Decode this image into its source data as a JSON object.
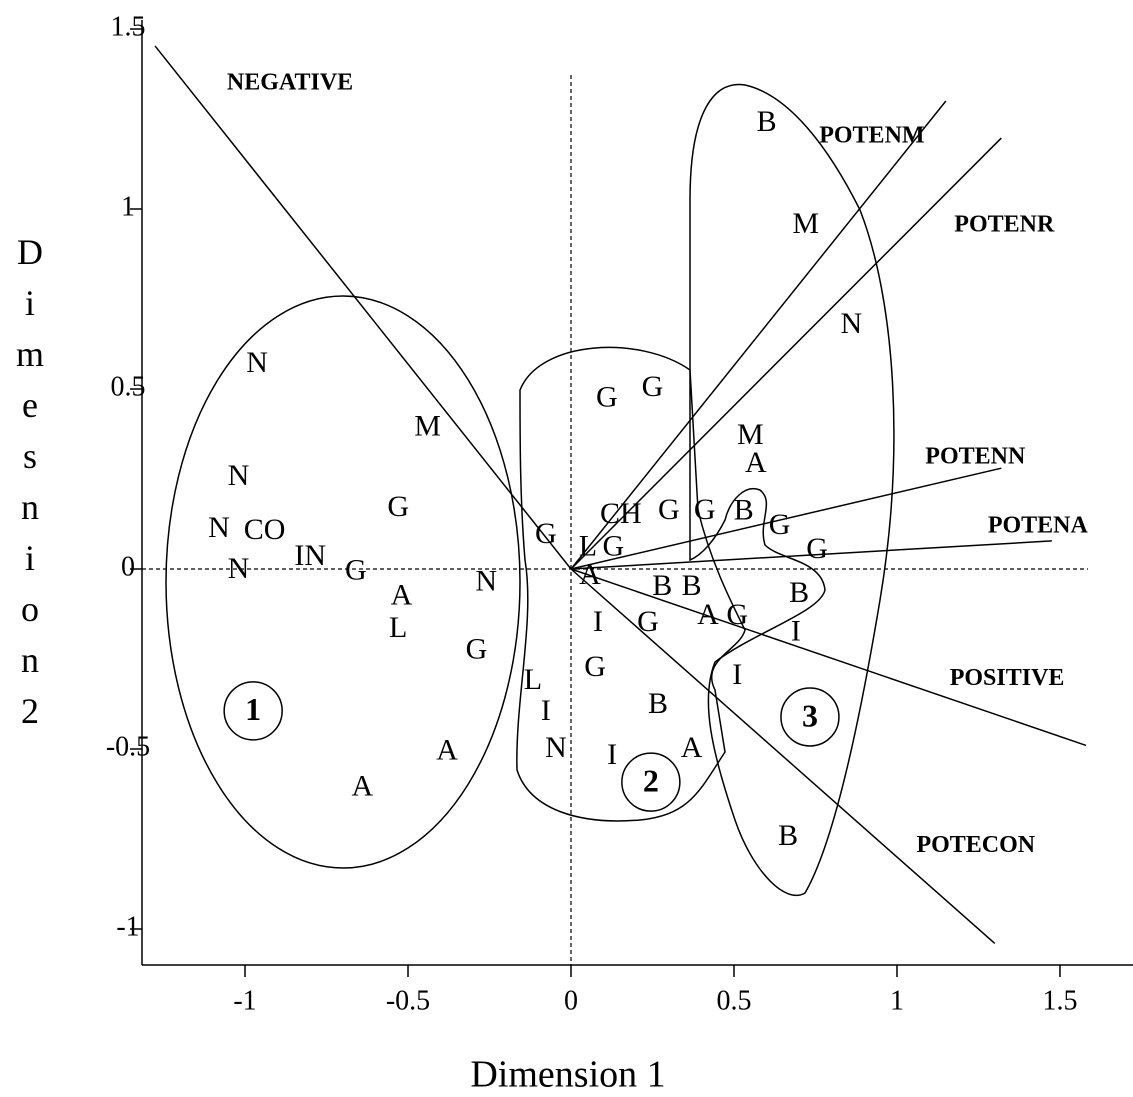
{
  "chart_data": {
    "type": "scatter",
    "xlabel": "Dimension 1",
    "ylabel": "Dimesnion2",
    "xlim": [
      -1.316,
      1.724
    ],
    "ylim": [
      -1.1,
      1.525
    ],
    "xticks": [
      -1,
      -0.5,
      0,
      0.5,
      1,
      1.5
    ],
    "yticks": [
      -1,
      -0.5,
      0,
      0.5,
      1,
      1.5
    ],
    "zero_lines": true,
    "labels": [
      "N",
      "N",
      "N",
      "CO",
      "N",
      "IN",
      "G",
      "G",
      "M",
      "A",
      "L",
      "N",
      "G",
      "A",
      "A",
      "G",
      "G",
      "G",
      "L",
      "G",
      "CH",
      "G",
      "G",
      "A",
      "B",
      "B",
      "I",
      "G",
      "A",
      "G",
      "G",
      "L",
      "I",
      "N",
      "I",
      "B",
      "A",
      "B",
      "M",
      "N",
      "M",
      "A",
      "B",
      "G",
      "G",
      "B",
      "I",
      "I",
      "B"
    ],
    "x": [
      -0.963,
      -1.02,
      -1.08,
      -0.94,
      -1.02,
      -0.8,
      -0.66,
      -0.53,
      -0.44,
      -0.52,
      -0.53,
      -0.26,
      -0.29,
      -0.38,
      -0.64,
      0.11,
      0.25,
      -0.077,
      0.052,
      0.13,
      0.153,
      0.3,
      0.41,
      0.058,
      0.28,
      0.37,
      0.083,
      0.236,
      0.42,
      0.51,
      0.074,
      -0.117,
      -0.077,
      -0.046,
      0.126,
      0.267,
      0.37,
      0.6,
      0.72,
      0.86,
      0.55,
      0.567,
      0.53,
      0.64,
      0.755,
      0.7,
      0.69,
      0.51,
      0.666
    ],
    "y": [
      0.567,
      0.253,
      0.108,
      0.103,
      -0.006,
      0.03,
      -0.01,
      0.167,
      0.39,
      -0.08,
      -0.17,
      -0.04,
      -0.23,
      -0.51,
      -0.61,
      0.47,
      0.5,
      0.092,
      0.056,
      0.056,
      0.147,
      0.158,
      0.158,
      -0.022,
      -0.053,
      -0.053,
      -0.153,
      -0.153,
      -0.133,
      -0.133,
      -0.278,
      -0.314,
      -0.4,
      -0.503,
      -0.522,
      -0.381,
      -0.503,
      1.236,
      0.953,
      0.675,
      0.367,
      0.289,
      0.156,
      0.117,
      0.05,
      -0.072,
      -0.18,
      -0.3,
      -0.747
    ],
    "vectors": [
      {
        "name": "NEGATIVE",
        "x": -1.276,
        "y": 1.453
      },
      {
        "name": "POTENM",
        "x": 1.15,
        "y": 1.3
      },
      {
        "name": "POTENR",
        "x": 1.32,
        "y": 1.197
      },
      {
        "name": "POTENN",
        "x": 1.32,
        "y": 0.28
      },
      {
        "name": "POTENA",
        "x": 1.475,
        "y": 0.078
      },
      {
        "name": "POSITIVE",
        "x": 1.58,
        "y": -0.49
      },
      {
        "name": "POTECON",
        "x": 1.3,
        "y": -1.04
      }
    ],
    "clusters": [
      {
        "label": "1",
        "x": -0.975,
        "y": -0.394
      },
      {
        "label": "2",
        "x": 0.245,
        "y": -0.592
      },
      {
        "label": "3",
        "x": 0.733,
        "y": -0.411
      }
    ]
  }
}
